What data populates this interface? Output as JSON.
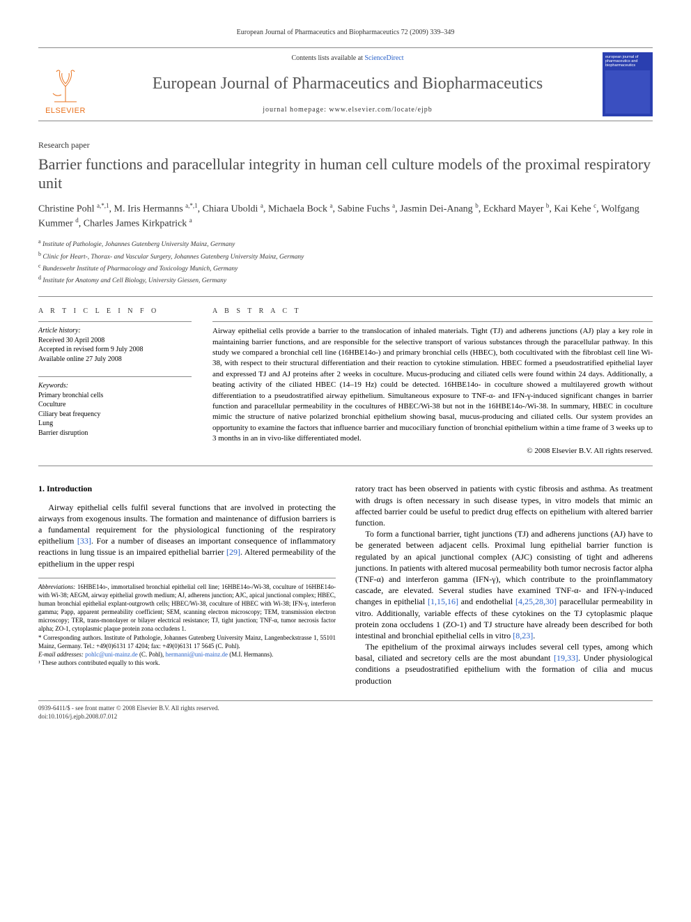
{
  "running_head": "European Journal of Pharmaceutics and Biopharmaceutics 72 (2009) 339–349",
  "masthead": {
    "contents_prefix": "Contents lists available at ",
    "contents_link": "ScienceDirect",
    "journal": "European Journal of Pharmaceutics and Biopharmaceutics",
    "homepage_prefix": "journal homepage: ",
    "homepage_url": "www.elsevier.com/locate/ejpb",
    "publisher": "ELSEVIER",
    "cover_title": "european journal of pharmaceutics and biopharmaceutics"
  },
  "article_type": "Research paper",
  "title": "Barrier functions and paracellular integrity in human cell culture models of the proximal respiratory unit",
  "authors_html": "Christine Pohl <sup>a,*,1</sup>, M. Iris Hermanns <sup>a,*,1</sup>, Chiara Uboldi <sup>a</sup>, Michaela Bock <sup>a</sup>, Sabine Fuchs <sup>a</sup>, Jasmin Dei-Anang <sup>b</sup>, Eckhard Mayer <sup>b</sup>, Kai Kehe <sup>c</sup>, Wolfgang Kummer <sup>d</sup>, Charles James Kirkpatrick <sup>a</sup>",
  "affiliations": [
    {
      "key": "a",
      "text": "Institute of Pathologie, Johannes Gutenberg University Mainz, Germany"
    },
    {
      "key": "b",
      "text": "Clinic for Heart-, Thorax- and Vascular Surgery, Johannes Gutenberg University Mainz, Germany"
    },
    {
      "key": "c",
      "text": "Bundeswehr Institute of Pharmacology and Toxicology Munich, Germany"
    },
    {
      "key": "d",
      "text": "Institute for Anatomy and Cell Biology, University Giessen, Germany"
    }
  ],
  "article_info": {
    "heading": "A R T I C L E   I N F O",
    "history_label": "Article history:",
    "history": [
      "Received 30 April 2008",
      "Accepted in revised form 9 July 2008",
      "Available online 27 July 2008"
    ],
    "keywords_label": "Keywords:",
    "keywords": [
      "Primary bronchial cells",
      "Coculture",
      "Ciliary beat frequency",
      "Lung",
      "Barrier disruption"
    ]
  },
  "abstract": {
    "heading": "A B S T R A C T",
    "text": "Airway epithelial cells provide a barrier to the translocation of inhaled materials. Tight (TJ) and adherens junctions (AJ) play a key role in maintaining barrier functions, and are responsible for the selective transport of various substances through the paracellular pathway. In this study we compared a bronchial cell line (16HBE14o-) and primary bronchial cells (HBEC), both cocultivated with the fibroblast cell line Wi-38, with respect to their structural differentiation and their reaction to cytokine stimulation. HBEC formed a pseudostratified epithelial layer and expressed TJ and AJ proteins after 2 weeks in coculture. Mucus-producing and ciliated cells were found within 24 days. Additionally, a beating activity of the ciliated HBEC (14–19 Hz) could be detected. 16HBE14o- in coculture showed a multilayered growth without differentiation to a pseudostratified airway epithelium. Simultaneous exposure to TNF-α- and IFN-γ-induced significant changes in barrier function and paracellular permeability in the cocultures of HBEC/Wi-38 but not in the 16HBE14o-/Wi-38. In summary, HBEC in coculture mimic the structure of native polarized bronchial epithelium showing basal, mucus-producing and ciliated cells. Our system provides an opportunity to examine the factors that influence barrier and mucociliary function of bronchial epithelium within a time frame of 3 weeks up to 3 months in an in vivo-like differentiated model.",
    "copyright": "© 2008 Elsevier B.V. All rights reserved."
  },
  "body": {
    "section_heading": "1. Introduction",
    "p1_a": "Airway epithelial cells fulfil several functions that are involved in protecting the airways from exogenous insults. The formation and maintenance of diffusion barriers is a fundamental requirement for the physiological functioning of the respiratory epithelium ",
    "p1_ref1": "[33]",
    "p1_b": ". For a number of diseases an important consequence of inflammatory reactions in lung tissue is an impaired epithelial barrier ",
    "p1_ref2": "[29]",
    "p1_c": ". Altered permeability of the epithelium in the upper respi",
    "p1_d": "ratory tract has been observed in patients with cystic fibrosis and asthma. As treatment with drugs is often necessary in such disease types, in vitro models that mimic an affected barrier could be useful to predict drug effects on epithelium with altered barrier function.",
    "p2_a": "To form a functional barrier, tight junctions (TJ) and adherens junctions (AJ) have to be generated between adjacent cells. Proximal lung epithelial barrier function is regulated by an apical junctional complex (AJC) consisting of tight and adherens junctions. In patients with altered mucosal permeability both tumor necrosis factor alpha (TNF-α) and interferon gamma (IFN-γ), which contribute to the proinflammatory cascade, are elevated. Several studies have examined TNF-α- and IFN-γ-induced changes in epithelial ",
    "p2_ref1": "[1,15,16]",
    "p2_b": " and endothelial ",
    "p2_ref2": "[4,25,28,30]",
    "p2_c": " paracellular permeability in vitro. Additionally, variable effects of these cytokines on the TJ cytoplasmic plaque protein zona occludens 1 (ZO-1) and TJ structure have already been described for both intestinal and bronchial epithelial cells in vitro ",
    "p2_ref3": "[8,23]",
    "p2_d": ".",
    "p3_a": "The epithelium of the proximal airways includes several cell types, among which basal, ciliated and secretory cells are the most abundant ",
    "p3_ref1": "[19,33]",
    "p3_b": ". Under physiological conditions a pseudostratified epithelium with the formation of cilia and mucus production"
  },
  "footnotes": {
    "abbrev_label": "Abbreviations:",
    "abbrev_text": " 16HBE14o-, immortalised bronchial epithelial cell line; 16HBE14o-/Wi-38, coculture of 16HBE14o- with Wi-38; AEGM, airway epithelial growth medium; AJ, adherens junction; AJC, apical junctional complex; HBEC, human bronchial epithelial explant-outgrowth cells; HBEC/Wi-38, coculture of HBEC with Wi-38; IFN-γ, interferon gamma; Papp, apparent permeability coefficient; SEM, scanning electron microscopy; TEM, transmission electron microscopy; TER, trans-monolayer or bilayer electrical resistance; TJ, tight junction; TNF-α, tumor necrosis factor alpha; ZO-1, cytoplasmic plaque protein zona occludens 1.",
    "corr_label": "* Corresponding authors. ",
    "corr_text": "Institute of Pathologie, Johannes Gutenberg University Mainz, Langenbeckstrasse 1, 55101 Mainz, Germany. Tel.: +49(0)6131 17 4204; fax: +49(0)6131 17 5645 (C. Pohl).",
    "email_label": "E-mail addresses:",
    "email1": "pohlc@uni-mainz.de",
    "email1_who": " (C. Pohl), ",
    "email2": "hermanni@uni-mainz.de",
    "email2_who": " (M.I. Hermanns).",
    "note1": "¹ These authors contributed equally to this work."
  },
  "footer": {
    "line1": "0939-6411/$ - see front matter © 2008 Elsevier B.V. All rights reserved.",
    "line2": "doi:10.1016/j.ejpb.2008.07.012"
  },
  "colors": {
    "link": "#2a62c9",
    "elsevier_orange": "#e9711c",
    "heading_gray": "#4a4a4a",
    "cover_blue": "#2a3fb0"
  }
}
